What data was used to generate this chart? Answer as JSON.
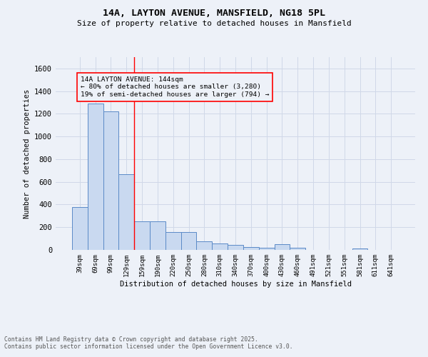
{
  "title_line1": "14A, LAYTON AVENUE, MANSFIELD, NG18 5PL",
  "title_line2": "Size of property relative to detached houses in Mansfield",
  "xlabel": "Distribution of detached houses by size in Mansfield",
  "ylabel": "Number of detached properties",
  "categories": [
    "39sqm",
    "69sqm",
    "99sqm",
    "129sqm",
    "159sqm",
    "190sqm",
    "220sqm",
    "250sqm",
    "280sqm",
    "310sqm",
    "340sqm",
    "370sqm",
    "400sqm",
    "430sqm",
    "460sqm",
    "491sqm",
    "521sqm",
    "551sqm",
    "581sqm",
    "611sqm",
    "641sqm"
  ],
  "values": [
    380,
    1290,
    1220,
    670,
    250,
    250,
    160,
    160,
    75,
    55,
    45,
    25,
    20,
    50,
    20,
    0,
    0,
    0,
    15,
    0,
    0
  ],
  "bar_color": "#c9d9f0",
  "bar_edge_color": "#5b8ac7",
  "grid_color": "#d0d8e8",
  "vline_color": "red",
  "annotation_title": "14A LAYTON AVENUE: 144sqm",
  "annotation_line1": "← 80% of detached houses are smaller (3,280)",
  "annotation_line2": "19% of semi-detached houses are larger (794) →",
  "footer_line1": "Contains HM Land Registry data © Crown copyright and database right 2025.",
  "footer_line2": "Contains public sector information licensed under the Open Government Licence v3.0.",
  "ylim": [
    0,
    1700
  ],
  "yticks": [
    0,
    200,
    400,
    600,
    800,
    1000,
    1200,
    1400,
    1600
  ],
  "background_color": "#edf1f8"
}
